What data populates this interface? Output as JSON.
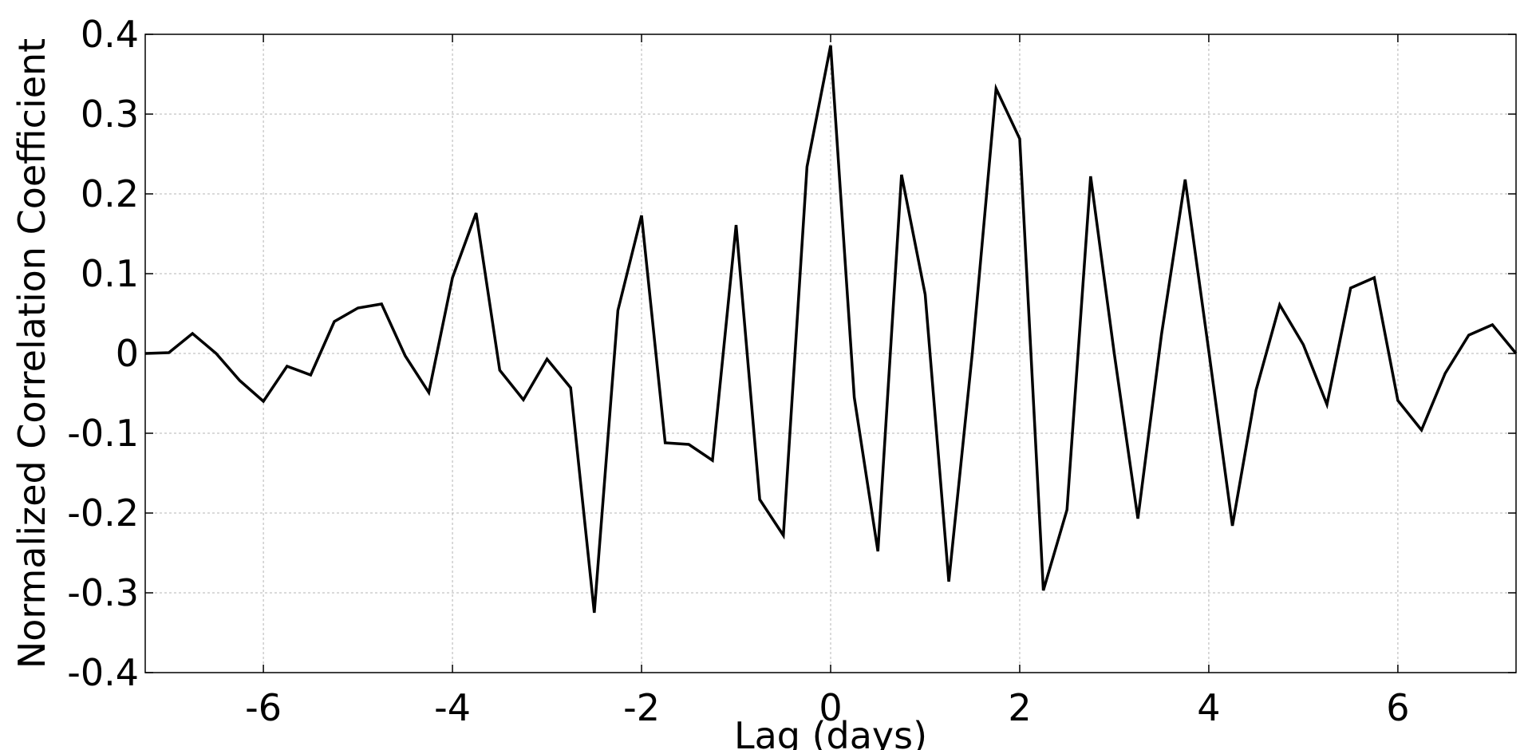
{
  "chart_data": {
    "type": "line",
    "title": "",
    "xlabel": "Lag (days)",
    "ylabel": "Normalized Correlation Coefficient",
    "xlim": [
      -7.25,
      7.25
    ],
    "ylim": [
      -0.4,
      0.4
    ],
    "grid": true,
    "legend": "none",
    "line_color": "#000000",
    "x_ticks": [
      -6,
      -4,
      -2,
      0,
      2,
      4,
      6
    ],
    "x_tick_labels": [
      "-6",
      "-4",
      "-2",
      "0",
      "2",
      "4",
      "6"
    ],
    "y_ticks": [
      -0.4,
      -0.3,
      -0.2,
      -0.1,
      0,
      0.1,
      0.2,
      0.3,
      0.4
    ],
    "y_tick_labels": [
      "-0.4",
      "-0.3",
      "-0.2",
      "-0.1",
      "0",
      "0.1",
      "0.2",
      "0.3",
      "0.4"
    ],
    "x": [
      -7.25,
      -7.0,
      -6.75,
      -6.5,
      -6.25,
      -6.0,
      -5.75,
      -5.5,
      -5.25,
      -5.0,
      -4.75,
      -4.5,
      -4.25,
      -4.0,
      -3.75,
      -3.5,
      -3.25,
      -3.0,
      -2.75,
      -2.5,
      -2.25,
      -2.0,
      -1.75,
      -1.5,
      -1.25,
      -1.0,
      -0.75,
      -0.5,
      -0.25,
      0.0,
      0.25,
      0.5,
      0.75,
      1.0,
      1.25,
      1.5,
      1.75,
      2.0,
      2.25,
      2.5,
      2.75,
      3.0,
      3.25,
      3.5,
      3.75,
      4.0,
      4.25,
      4.5,
      4.75,
      5.0,
      5.25,
      5.5,
      5.75,
      6.0,
      6.25,
      6.5,
      6.75,
      7.0,
      7.25
    ],
    "y": [
      0.0,
      0.001,
      0.025,
      0.0,
      -0.034,
      -0.06,
      -0.016,
      -0.027,
      0.04,
      0.057,
      0.062,
      -0.003,
      -0.049,
      0.095,
      0.176,
      -0.021,
      -0.058,
      -0.007,
      -0.043,
      -0.325,
      0.054,
      0.173,
      -0.112,
      -0.114,
      -0.134,
      0.161,
      -0.183,
      -0.228,
      0.234,
      0.386,
      -0.055,
      -0.248,
      0.224,
      0.074,
      -0.286,
      0.002,
      0.332,
      0.269,
      -0.297,
      -0.196,
      0.222,
      0.0,
      -0.207,
      0.024,
      0.218,
      0.003,
      -0.216,
      -0.046,
      0.061,
      0.011,
      -0.064,
      0.082,
      0.095,
      -0.059,
      -0.096,
      -0.025,
      0.023,
      0.036,
      0.0
    ]
  }
}
